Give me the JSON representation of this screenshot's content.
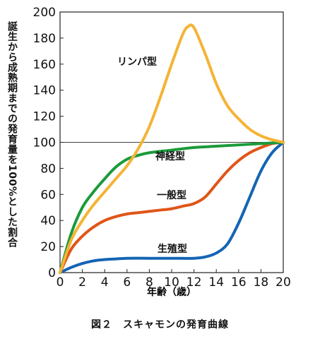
{
  "chart_data": {
    "type": "line",
    "caption": "図２　スキャモンの発育曲線",
    "xlabel": "年齢（歳）",
    "ylabel": "誕生から成熟期までの発育量を100%とした割合",
    "xlim": [
      0,
      20
    ],
    "ylim": [
      0,
      200
    ],
    "xticks": [
      0,
      2,
      4,
      6,
      8,
      10,
      12,
      14,
      16,
      18,
      20
    ],
    "yticks": [
      0,
      20,
      40,
      60,
      80,
      100,
      120,
      140,
      160,
      180,
      200
    ],
    "reference_line": 100,
    "series": [
      {
        "name": "リンパ型",
        "color": "#f5b335",
        "x": [
          0,
          1,
          2,
          3,
          4,
          5,
          6,
          7,
          8,
          9,
          10,
          11,
          11.5,
          12,
          13,
          14,
          15,
          16,
          17,
          18,
          19,
          20
        ],
        "values": [
          0,
          25,
          40,
          52,
          62,
          72,
          82,
          95,
          112,
          135,
          160,
          183,
          189,
          188,
          168,
          145,
          128,
          118,
          110,
          105,
          102,
          100
        ]
      },
      {
        "name": "神経型",
        "color": "#1a9b3a",
        "x": [
          0,
          1,
          2,
          3,
          4,
          5,
          6,
          7,
          8,
          10,
          12,
          14,
          16,
          18,
          20
        ],
        "values": [
          0,
          30,
          50,
          62,
          72,
          81,
          87,
          90,
          92,
          94,
          96,
          97,
          98,
          99,
          100
        ]
      },
      {
        "name": "一般型",
        "color": "#e05518",
        "x": [
          0,
          1,
          2,
          3,
          4,
          5,
          6,
          7,
          8,
          9,
          10,
          11,
          12,
          13,
          14,
          15,
          16,
          17,
          18,
          19,
          20
        ],
        "values": [
          0,
          18,
          28,
          35,
          40,
          43,
          45,
          46,
          47,
          48,
          49,
          51,
          53,
          58,
          68,
          78,
          86,
          92,
          96,
          99,
          100
        ]
      },
      {
        "name": "生殖型",
        "color": "#1464b4",
        "x": [
          0,
          1,
          2,
          3,
          4,
          5,
          6,
          8,
          10,
          12,
          13,
          14,
          15,
          16,
          17,
          18,
          19,
          20
        ],
        "values": [
          0,
          4,
          7,
          9,
          10,
          10.5,
          11,
          11,
          11,
          11,
          12,
          15,
          22,
          38,
          58,
          78,
          92,
          100
        ]
      }
    ],
    "labels": [
      "リンパ型",
      "神経型",
      "一般型",
      "生殖型"
    ]
  }
}
